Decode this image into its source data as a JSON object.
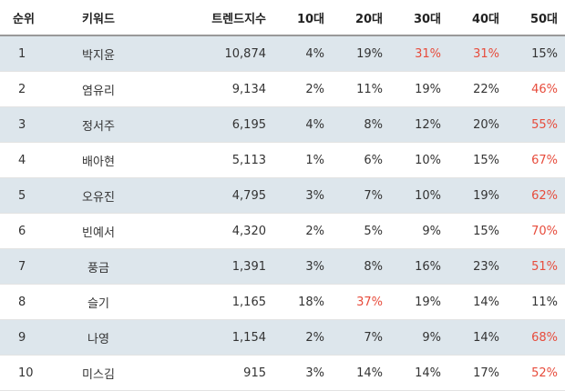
{
  "headers": [
    "순위",
    "키워드",
    "트렌드지수",
    "10대",
    "20대",
    "30대",
    "40대",
    "50대"
  ],
  "highlight_color": "#e74c3c",
  "row_alt_color": "#dde6ec",
  "rows": [
    {
      "rank": "1",
      "keyword": "박지윤",
      "index": "10,874",
      "a10": "4%",
      "a20": "19%",
      "a30": "31%",
      "a40": "31%",
      "a50": "15%",
      "hi": [
        "a30",
        "a40"
      ]
    },
    {
      "rank": "2",
      "keyword": "염유리",
      "index": "9,134",
      "a10": "2%",
      "a20": "11%",
      "a30": "19%",
      "a40": "22%",
      "a50": "46%",
      "hi": [
        "a50"
      ]
    },
    {
      "rank": "3",
      "keyword": "정서주",
      "index": "6,195",
      "a10": "4%",
      "a20": "8%",
      "a30": "12%",
      "a40": "20%",
      "a50": "55%",
      "hi": [
        "a50"
      ]
    },
    {
      "rank": "4",
      "keyword": "배아현",
      "index": "5,113",
      "a10": "1%",
      "a20": "6%",
      "a30": "10%",
      "a40": "15%",
      "a50": "67%",
      "hi": [
        "a50"
      ]
    },
    {
      "rank": "5",
      "keyword": "오유진",
      "index": "4,795",
      "a10": "3%",
      "a20": "7%",
      "a30": "10%",
      "a40": "19%",
      "a50": "62%",
      "hi": [
        "a50"
      ]
    },
    {
      "rank": "6",
      "keyword": "빈예서",
      "index": "4,320",
      "a10": "2%",
      "a20": "5%",
      "a30": "9%",
      "a40": "15%",
      "a50": "70%",
      "hi": [
        "a50"
      ]
    },
    {
      "rank": "7",
      "keyword": "풍금",
      "index": "1,391",
      "a10": "3%",
      "a20": "8%",
      "a30": "16%",
      "a40": "23%",
      "a50": "51%",
      "hi": [
        "a50"
      ]
    },
    {
      "rank": "8",
      "keyword": "슬기",
      "index": "1,165",
      "a10": "18%",
      "a20": "37%",
      "a30": "19%",
      "a40": "14%",
      "a50": "11%",
      "hi": [
        "a20"
      ]
    },
    {
      "rank": "9",
      "keyword": "나영",
      "index": "1,154",
      "a10": "2%",
      "a20": "7%",
      "a30": "9%",
      "a40": "14%",
      "a50": "68%",
      "hi": [
        "a50"
      ]
    },
    {
      "rank": "10",
      "keyword": "미스김",
      "index": "915",
      "a10": "3%",
      "a20": "14%",
      "a30": "14%",
      "a40": "17%",
      "a50": "52%",
      "hi": [
        "a50"
      ]
    }
  ]
}
